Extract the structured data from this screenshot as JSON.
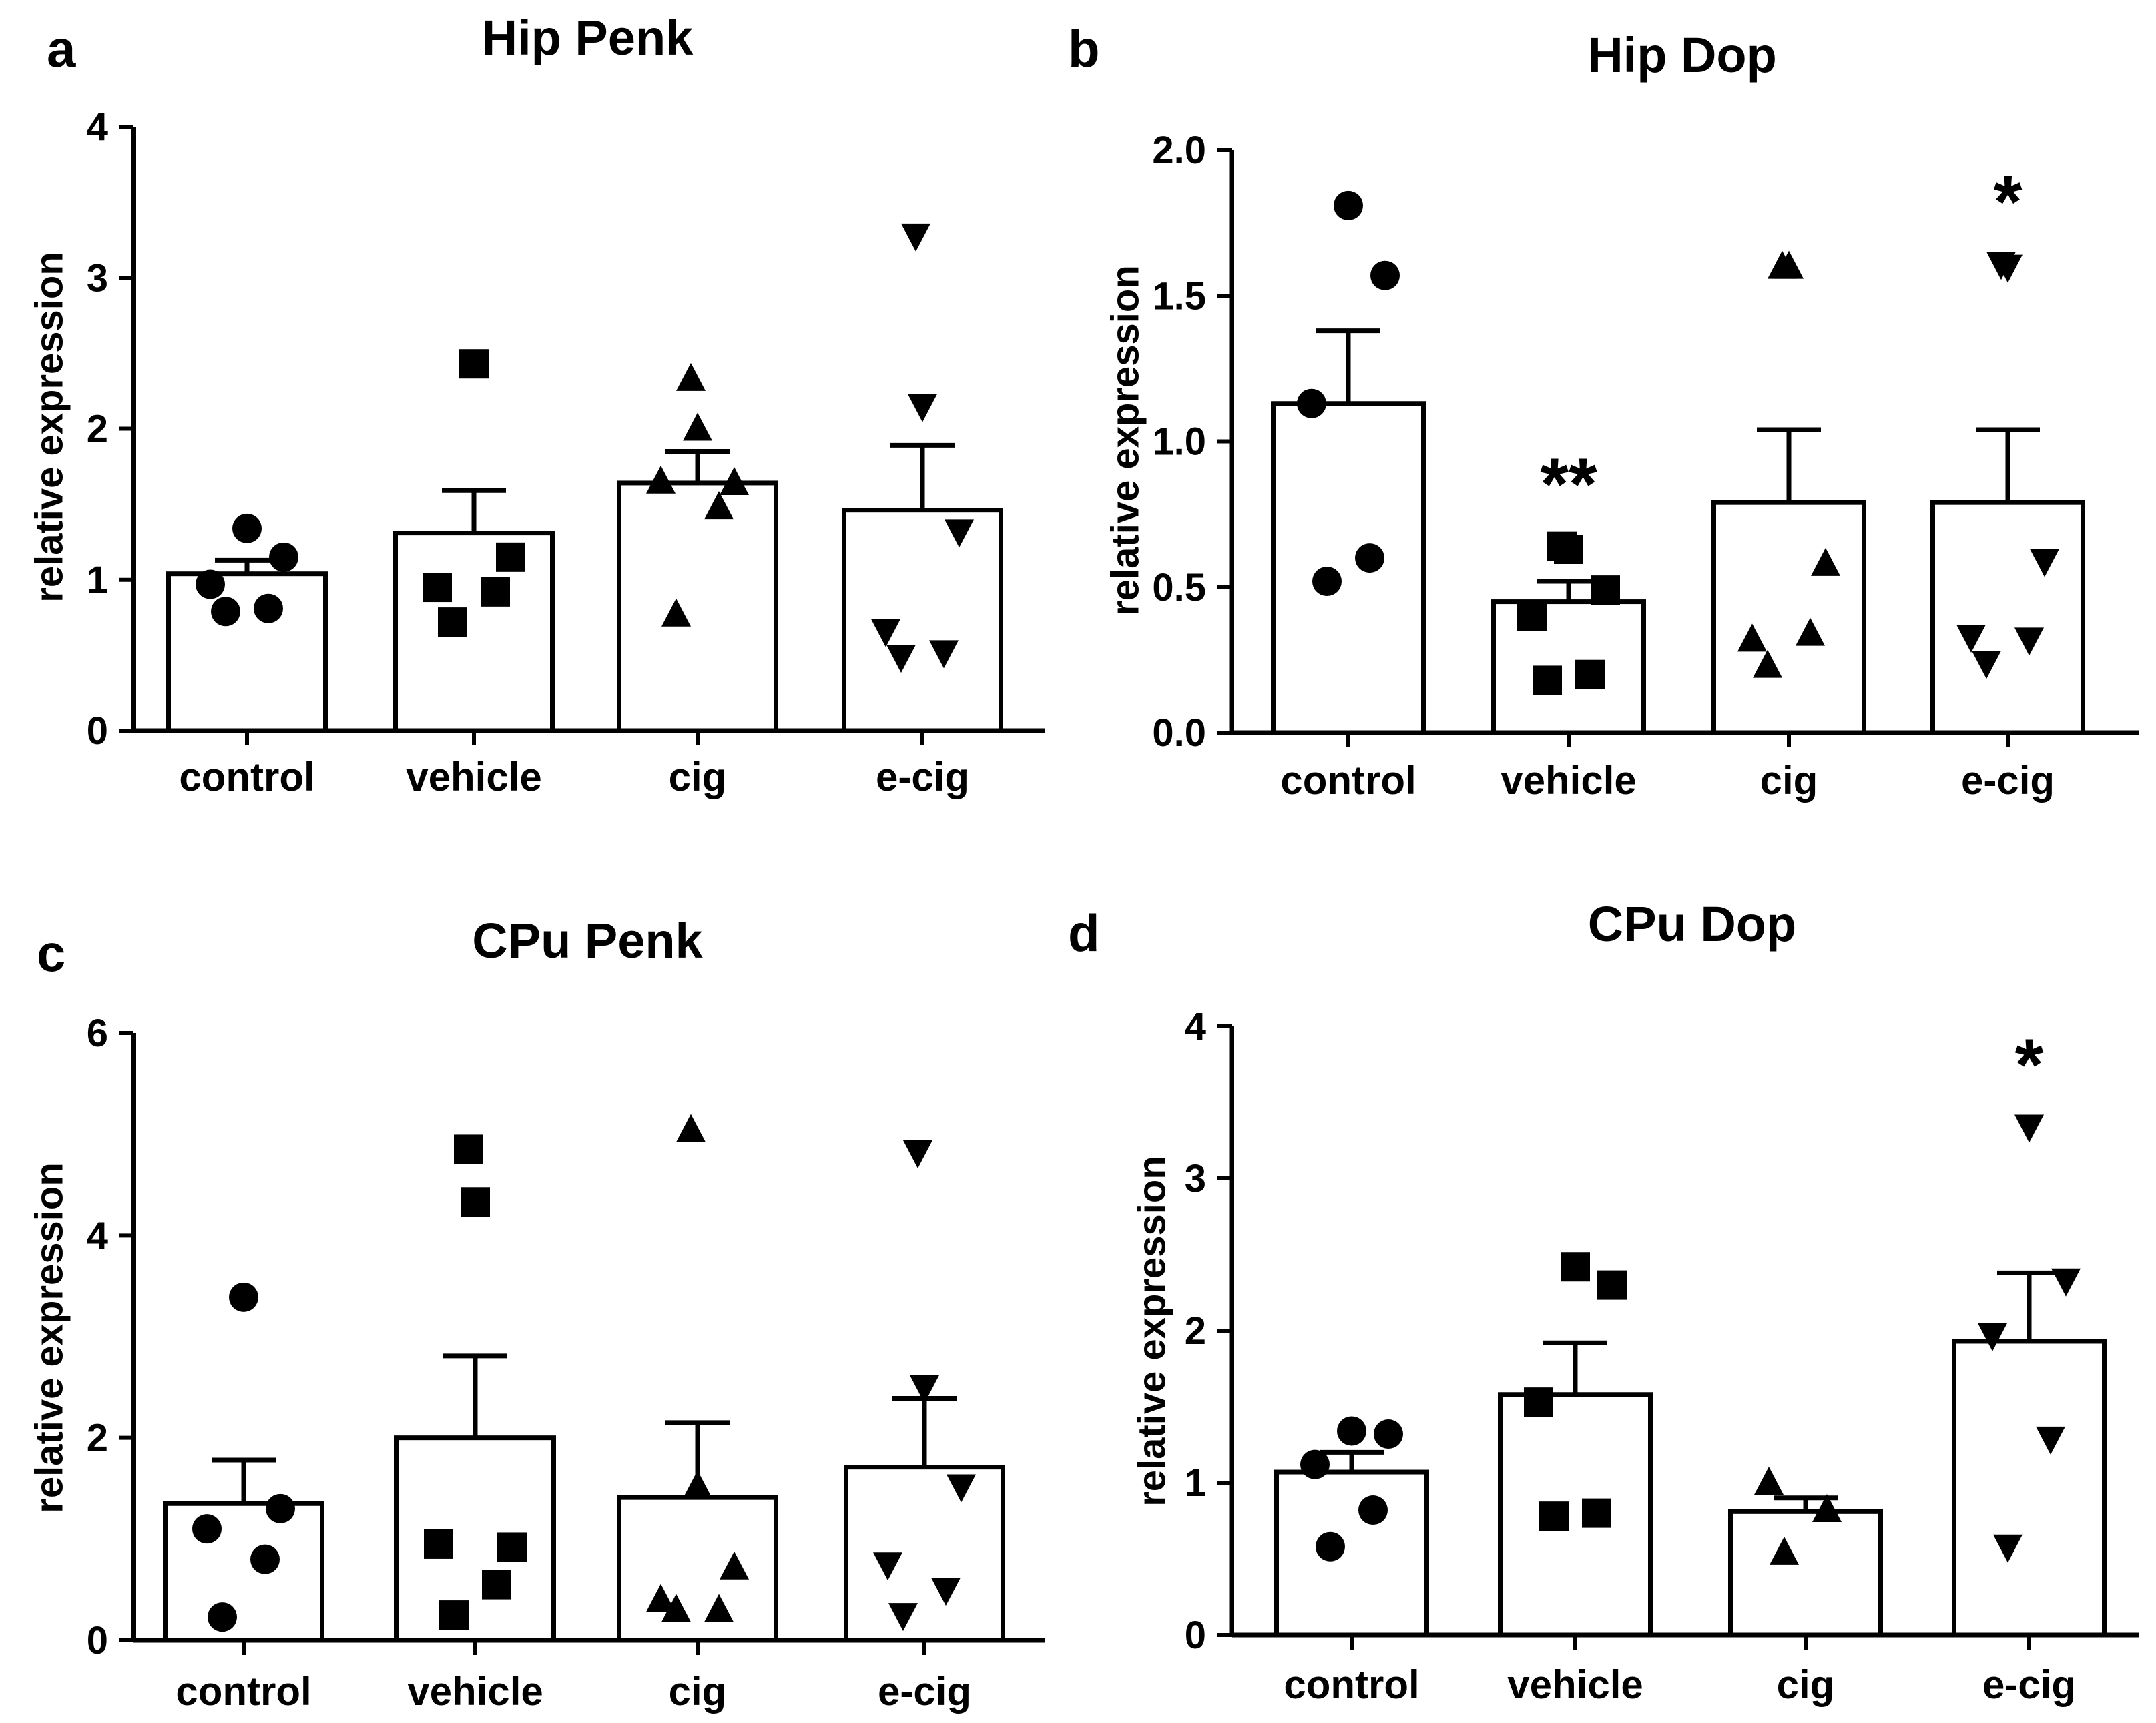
{
  "chart_data": [
    {
      "panel": "a",
      "title": "Hip Penk",
      "type": "bar",
      "categories": [
        "control",
        "vehicle",
        "cig",
        "e-cig"
      ],
      "ylabel": "relative expression",
      "xlabel": "",
      "ylim": [
        0,
        4
      ],
      "yticks": [
        0,
        1,
        2,
        3,
        4
      ],
      "grid": false,
      "means": [
        1.04,
        1.31,
        1.64,
        1.46
      ],
      "sem": [
        0.09,
        0.28,
        0.21,
        0.43
      ],
      "markers": [
        "circle",
        "square",
        "triangle-up",
        "triangle-down"
      ],
      "points": [
        [
          0.79,
          0.81,
          0.97,
          1.15,
          1.34
        ],
        [
          0.72,
          0.92,
          0.95,
          1.15,
          2.43
        ],
        [
          0.77,
          1.48,
          1.65,
          1.64,
          2.0,
          2.33
        ],
        [
          0.49,
          0.52,
          0.66,
          1.32,
          2.15,
          3.28
        ]
      ],
      "significance": [
        "",
        "",
        "",
        ""
      ]
    },
    {
      "panel": "b",
      "title": "Hip Dop",
      "type": "bar",
      "categories": [
        "control",
        "vehicle",
        "cig",
        "e-cig"
      ],
      "ylabel": "relative expression",
      "xlabel": "",
      "ylim": [
        0,
        2
      ],
      "yticks": [
        0.0,
        0.5,
        1.0,
        1.5,
        2.0
      ],
      "grid": false,
      "means": [
        1.13,
        0.45,
        0.79,
        0.79
      ],
      "sem": [
        0.25,
        0.07,
        0.25,
        0.25
      ],
      "markers": [
        "circle",
        "square",
        "triangle-up",
        "triangle-down"
      ],
      "points": [
        [
          0.52,
          0.6,
          1.13,
          1.57,
          1.81
        ],
        [
          0.18,
          0.2,
          0.4,
          0.49,
          0.63,
          0.64
        ],
        [
          0.23,
          0.34,
          0.32,
          0.58,
          1.6,
          1.6
        ],
        [
          0.24,
          0.32,
          0.33,
          0.59,
          1.6,
          1.61
        ]
      ],
      "significance": [
        "",
        "**",
        "",
        "*"
      ]
    },
    {
      "panel": "c",
      "title": "CPu Penk",
      "type": "bar",
      "categories": [
        "control",
        "vehicle",
        "cig",
        "e-cig"
      ],
      "ylabel": "relative expression",
      "xlabel": "",
      "ylim": [
        0,
        6
      ],
      "yticks": [
        0,
        2,
        4,
        6
      ],
      "grid": false,
      "means": [
        1.35,
        2.0,
        1.41,
        1.71
      ],
      "sem": [
        0.43,
        0.81,
        0.74,
        0.68
      ],
      "markers": [
        "circle",
        "square",
        "triangle-up",
        "triangle-down"
      ],
      "points": [
        [
          0.23,
          0.8,
          1.1,
          1.3,
          3.39
        ],
        [
          0.25,
          0.55,
          0.95,
          0.92,
          4.33,
          4.85
        ],
        [
          0.3,
          0.3,
          0.4,
          0.72,
          1.52,
          5.04
        ],
        [
          0.25,
          0.5,
          0.75,
          1.52,
          2.5,
          4.82
        ]
      ],
      "significance": [
        "",
        "",
        "",
        ""
      ]
    },
    {
      "panel": "d",
      "title": "CPu Dop",
      "type": "bar",
      "categories": [
        "control",
        "vehicle",
        "cig",
        "e-cig"
      ],
      "ylabel": "relative expression",
      "xlabel": "",
      "ylim": [
        0,
        4
      ],
      "yticks": [
        0,
        1,
        2,
        3,
        4
      ],
      "grid": false,
      "means": [
        1.07,
        1.58,
        0.81,
        1.93
      ],
      "sem": [
        0.13,
        0.34,
        0.09,
        0.45
      ],
      "markers": [
        "circle",
        "square",
        "triangle-up",
        "triangle-down"
      ],
      "points": [
        [
          0.58,
          0.82,
          1.12,
          1.32,
          1.34
        ],
        [
          0.78,
          0.8,
          1.53,
          2.3,
          2.42
        ],
        [
          0.54,
          0.82,
          1.0
        ],
        [
          0.58,
          1.29,
          1.97,
          2.33,
          3.34
        ]
      ],
      "significance": [
        "",
        "",
        "",
        "*"
      ]
    }
  ]
}
